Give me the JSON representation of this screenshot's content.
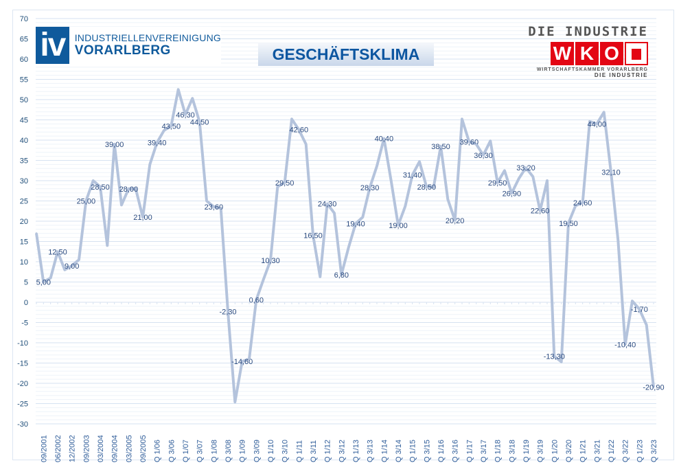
{
  "header": {
    "title": "GESCHÄFTSKLIMA",
    "iv_logo": {
      "mark": "iv",
      "line1": "INDUSTRIELLENVEREINIGUNG",
      "line2": "VORARLBERG"
    },
    "wko_logo": {
      "top": "DIE INDUSTRIE",
      "letters": [
        "W",
        "K",
        "O"
      ],
      "sub": "WIRTSCHAFTSKAMMER VORARLBERG",
      "sub2": "DIE INDUSTRIE"
    }
  },
  "chart_data": {
    "type": "line",
    "title": "GESCHÄFTSKLIMA",
    "ylim": [
      -30,
      70
    ],
    "yticks": [
      -30,
      -25,
      -20,
      -15,
      -10,
      -5,
      0,
      5,
      10,
      15,
      20,
      25,
      30,
      35,
      40,
      45,
      50,
      55,
      60,
      65,
      70
    ],
    "grid": true,
    "line_color": "#b4c3dc",
    "label_color": "#2a4a7f",
    "categories": [
      "",
      "09/2001",
      "",
      "06/2002",
      "",
      "12/2002",
      "",
      "09/2003",
      "",
      "03/2004",
      "",
      "09/2004",
      "",
      "03/2005",
      "",
      "09/2005",
      "",
      "Q 1/06",
      "",
      "Q 3/06",
      "",
      "Q 1/07",
      "",
      "Q 3/07",
      "",
      "Q 1/08",
      "",
      "Q 3/08",
      "",
      "Q 1/09",
      "",
      "Q 3/09",
      "",
      "Q 1/10",
      "",
      "Q 3/10",
      "",
      "Q 1/11",
      "",
      "Q 3/11",
      "",
      "Q 1/12",
      "",
      "Q 3/12",
      "",
      "Q 1/13",
      "",
      "Q 3/13",
      "",
      "Q 1/14",
      "",
      "Q 3/14",
      "",
      "Q 1/15",
      "",
      "Q 3/15",
      "",
      "Q 1/16",
      "",
      "Q 3/16",
      "",
      "Q 1/17",
      "",
      "Q 3/17",
      "",
      "Q 1/18",
      "",
      "Q 3/18",
      "",
      "Q 1/19",
      "",
      "Q 3/19",
      "",
      "Q 1/20",
      "",
      "Q 3/20",
      "",
      "Q 1/21",
      "",
      "Q 3/21",
      "",
      "Q 1/22",
      "",
      "Q 3/22",
      "",
      "Q 1/23",
      "",
      "Q 3/23"
    ],
    "values": [
      17,
      5.0,
      6,
      12.5,
      8,
      9.0,
      10.5,
      25.0,
      30,
      28.5,
      14,
      39.0,
      24,
      28.0,
      28,
      21.0,
      34,
      39.4,
      42.4,
      43.5,
      52.5,
      46.3,
      50.3,
      44.5,
      25,
      23.6,
      23.2,
      -2.3,
      -24.6,
      -14.6,
      -14,
      0.6,
      5.6,
      10.3,
      28.5,
      29.5,
      45.2,
      42.6,
      39,
      16.5,
      6.3,
      24.3,
      22,
      6.8,
      13.5,
      19.4,
      21,
      28.3,
      33.6,
      40.4,
      30,
      19.0,
      23.7,
      31.4,
      34.7,
      28.5,
      28.5,
      38.5,
      25.4,
      20.2,
      45.2,
      39.6,
      39,
      36.3,
      39.8,
      29.5,
      32.5,
      26.9,
      30.5,
      33.2,
      31,
      22.6,
      30,
      -13.3,
      -14.7,
      19.5,
      23.8,
      24.6,
      44.6,
      44.0,
      46.9,
      32.1,
      15.3,
      -10.4,
      0.3,
      -1.7,
      -5.6,
      -20.9
    ],
    "data_labels": [
      "",
      "5,00",
      "",
      "12,50",
      "",
      "9,00",
      "",
      "25,00",
      "",
      "28,50",
      "",
      "39,00",
      "",
      "28,00",
      "",
      "21,00",
      "",
      "39,40",
      "",
      "43,50",
      "",
      "46,30",
      "",
      "44,50",
      "",
      "23,60",
      "",
      "-2,30",
      "",
      "-14,60",
      "",
      "0,60",
      "",
      "10,30",
      "",
      "29,50",
      "",
      "42,60",
      "",
      "16,50",
      "",
      "24,30",
      "",
      "6,80",
      "",
      "19,40",
      "",
      "28,30",
      "",
      "40,40",
      "",
      "19,00",
      "",
      "31,40",
      "",
      "28,50",
      "",
      "38,50",
      "",
      "20,20",
      "",
      "39,60",
      "",
      "36,30",
      "",
      "29,50",
      "",
      "26,90",
      "",
      "33,20",
      "",
      "22,60",
      "",
      "-13,30",
      "",
      "19,50",
      "",
      "24,60",
      "",
      "44,00",
      "",
      "32,10",
      "",
      "-10,40",
      "",
      "-1,70",
      "",
      "-20,90"
    ]
  }
}
